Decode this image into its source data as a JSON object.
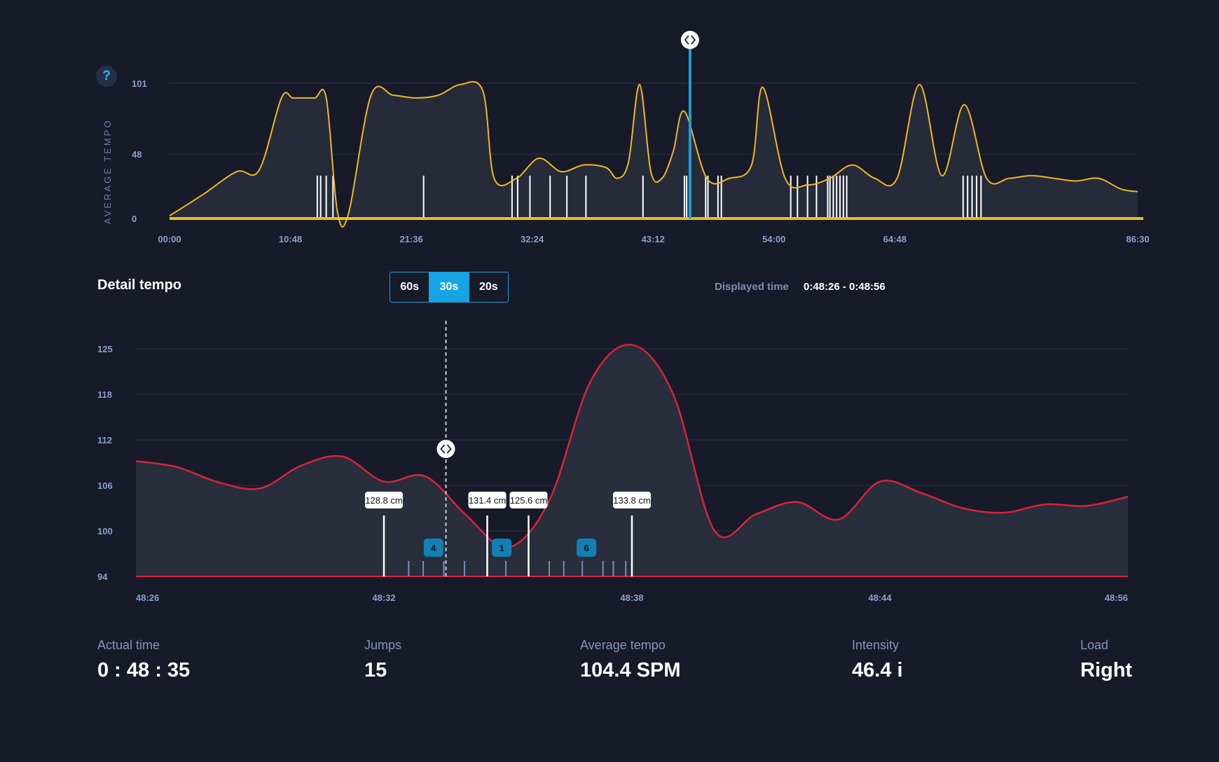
{
  "overview": {
    "help_label": "?",
    "y_axis_title": "AVERAGE TEMPO",
    "y_ticks": [
      "101",
      "48",
      "0"
    ],
    "x_ticks": [
      "00:00",
      "10:48",
      "21:36",
      "32:24",
      "43:12",
      "54:00",
      "64:48",
      "86:30"
    ],
    "handle_icon": "code-brackets-icon"
  },
  "detail": {
    "title": "Detail tempo",
    "range_buttons": [
      "60s",
      "30s",
      "20s"
    ],
    "active_range": "30s",
    "displayed_time_label": "Displayed time",
    "displayed_time_value": "0:48:26 - 0:48:56",
    "y_ticks": [
      "125",
      "118",
      "112",
      "106",
      "100",
      "94"
    ],
    "x_ticks": [
      "48:26",
      "48:32",
      "48:38",
      "48:44",
      "48:56"
    ],
    "jump_labels": [
      "128.8 cm",
      "131.4 cm",
      "125.6 cm",
      "133.8 cm"
    ],
    "cluster_badges": [
      "4",
      "1",
      "6"
    ]
  },
  "stats": {
    "actual_time_label": "Actual time",
    "actual_time_value": "0 : 48 : 35",
    "jumps_label": "Jumps",
    "jumps_value": "15",
    "avg_tempo_label": "Average tempo",
    "avg_tempo_value": "104.4 SPM",
    "intensity_label": "Intensity",
    "intensity_value": "46.4 i",
    "load_label": "Load",
    "load_value": "Right"
  },
  "chart_data": [
    {
      "type": "line",
      "title": "",
      "xlabel": "",
      "ylabel": "AVERAGE TEMPO",
      "ylim": [
        0,
        115
      ],
      "x_tick_labels": [
        "00:00",
        "10:48",
        "21:36",
        "32:24",
        "43:12",
        "54:00",
        "64:48",
        "86:30"
      ],
      "x_minutes": [
        0,
        3,
        6,
        8,
        10,
        11,
        12,
        13,
        14,
        15,
        16,
        18,
        20,
        22,
        24,
        26,
        28,
        29,
        31,
        33,
        35,
        37,
        39,
        40,
        41,
        42,
        43,
        44,
        45,
        46,
        48,
        50,
        52,
        53,
        55,
        57,
        59,
        61,
        63,
        65,
        67,
        69,
        71,
        73,
        75,
        77,
        79,
        81,
        83,
        85,
        86.5
      ],
      "series": [
        {
          "name": "Average tempo",
          "values": [
            2,
            18,
            35,
            36,
            90,
            90,
            90,
            90,
            90,
            5,
            4,
            92,
            92,
            90,
            92,
            100,
            95,
            30,
            30,
            45,
            35,
            40,
            38,
            30,
            42,
            100,
            35,
            30,
            50,
            80,
            30,
            30,
            40,
            98,
            30,
            25,
            30,
            40,
            30,
            30,
            100,
            32,
            85,
            30,
            30,
            32,
            30,
            28,
            30,
            22,
            20
          ]
        }
      ],
      "current_marker_minute": 46.5
    },
    {
      "type": "area",
      "title": "Detail tempo",
      "xlabel": "",
      "ylabel": "",
      "ylim": [
        94,
        125
      ],
      "x_tick_labels": [
        "48:26",
        "48:32",
        "48:38",
        "48:44",
        "48:56"
      ],
      "x_seconds": [
        0,
        1,
        2,
        3,
        4,
        5,
        6,
        7,
        8,
        9,
        10,
        11,
        12,
        13,
        14,
        15,
        16,
        17,
        18,
        19,
        20,
        21,
        22,
        23,
        24
      ],
      "series": [
        {
          "name": "Tempo",
          "values": [
            109.2,
            108.4,
            106.4,
            105.6,
            108.6,
            109.8,
            106.5,
            107.2,
            102.0,
            97.8,
            104.0,
            120.0,
            125.6,
            118.0,
            100.0,
            102.2,
            103.8,
            101.5,
            106.5,
            105.0,
            103.0,
            102.4,
            103.5,
            103.3,
            104.5
          ]
        }
      ],
      "current_marker_second": 7.5,
      "jumps": [
        {
          "second": 6.0,
          "height": "128.8 cm"
        },
        {
          "second": 8.5,
          "height": "131.4 cm"
        },
        {
          "second": 9.5,
          "height": "125.6 cm"
        },
        {
          "second": 12.0,
          "height": "133.8 cm"
        }
      ],
      "clusters": [
        {
          "second": 7.2,
          "count": "4"
        },
        {
          "second": 8.85,
          "count": "1"
        },
        {
          "second": 10.9,
          "count": "6"
        }
      ]
    }
  ]
}
